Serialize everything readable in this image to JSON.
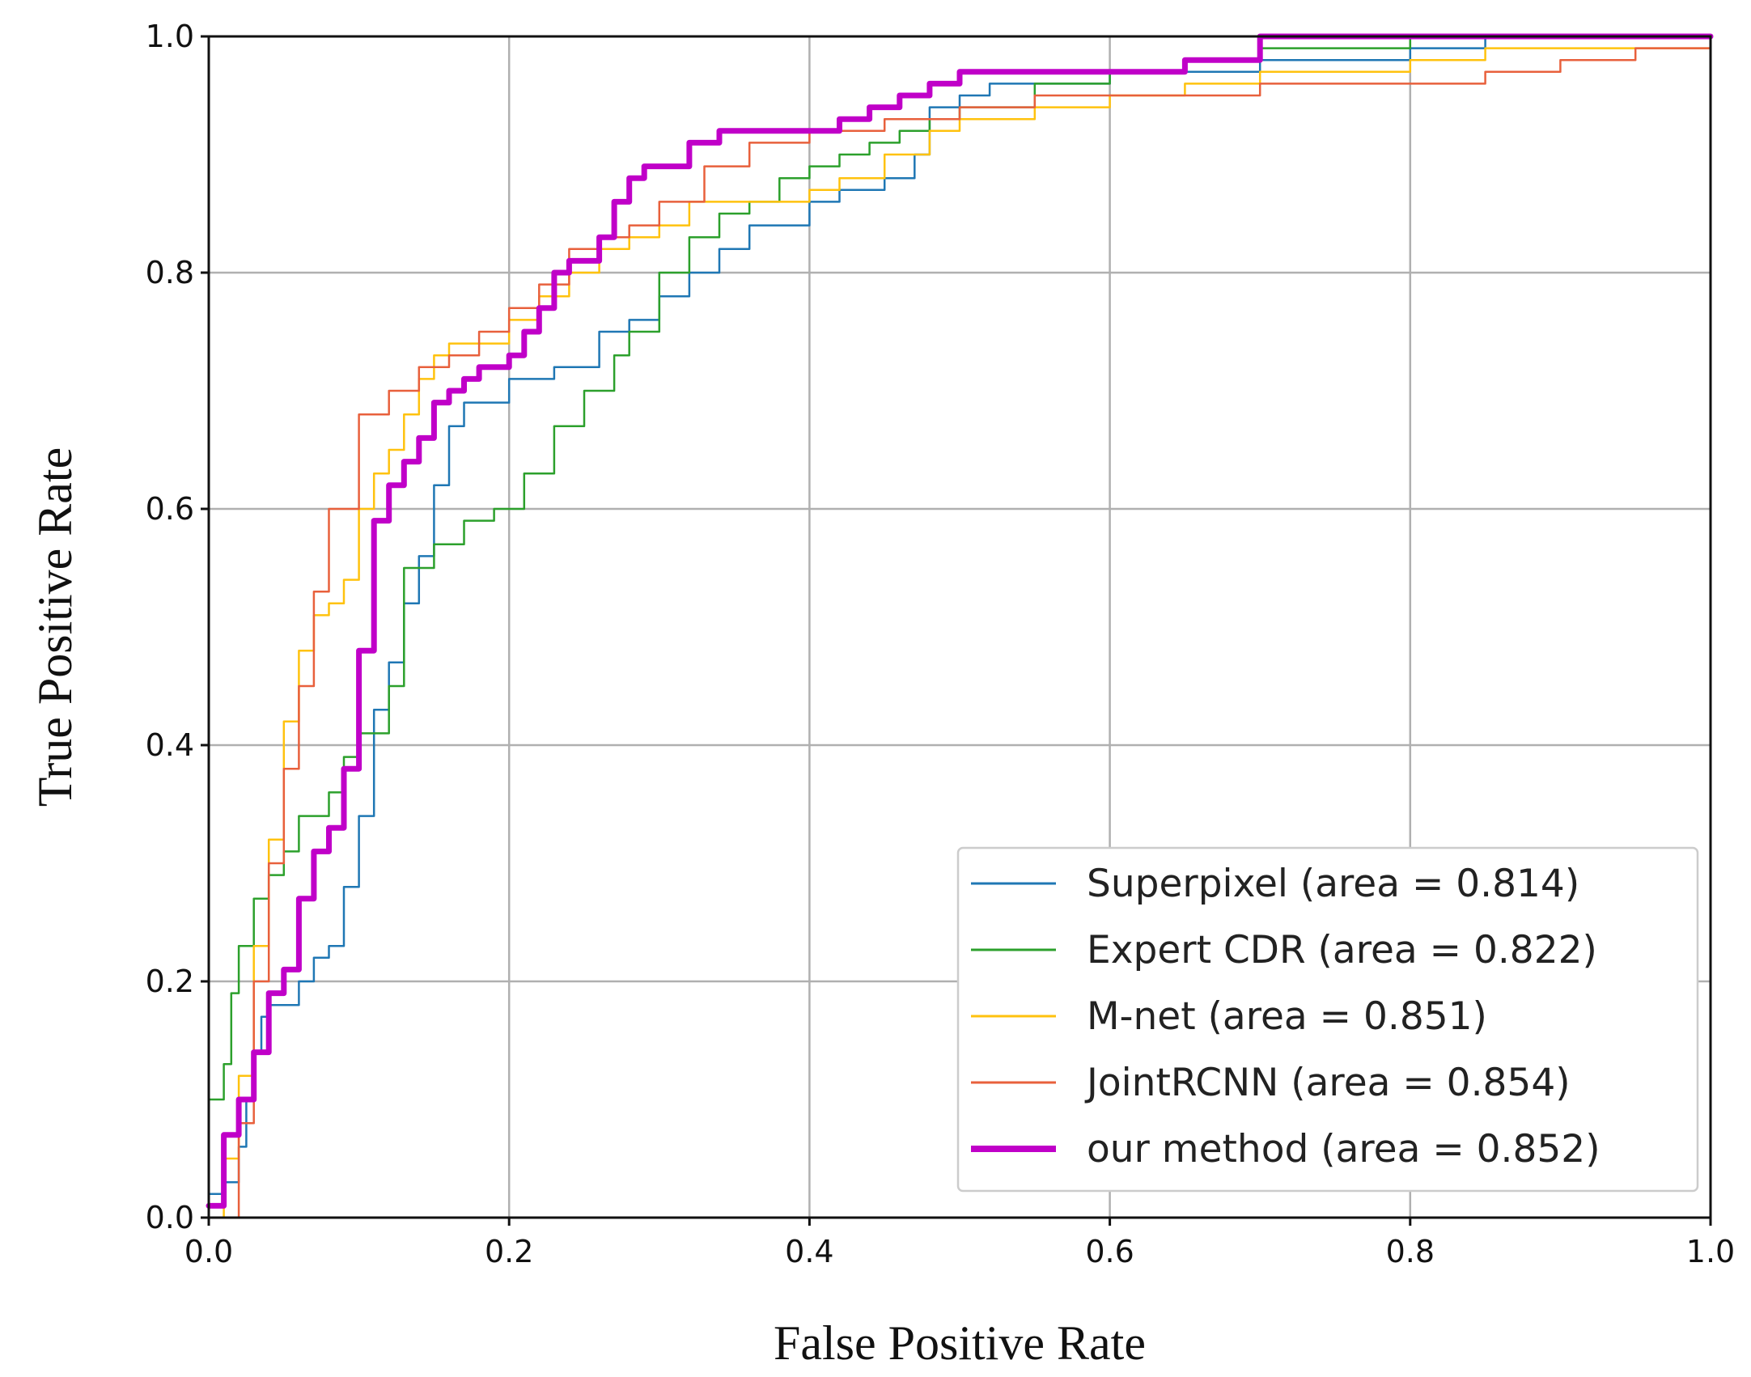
{
  "chart_data": {
    "type": "line",
    "title": "",
    "xlabel": "False Positive Rate",
    "ylabel": "True Positive Rate",
    "xlim": [
      0.0,
      1.0
    ],
    "ylim": [
      0.0,
      1.0
    ],
    "xticks": [
      "0.0",
      "0.2",
      "0.4",
      "0.6",
      "0.8",
      "1.0"
    ],
    "yticks": [
      "0.0",
      "0.2",
      "0.4",
      "0.6",
      "0.8",
      "1.0"
    ],
    "grid": true,
    "legend_position": "lower-right",
    "series": [
      {
        "name": "Superpixel",
        "legend_label": "Superpixel  (area = 0.814)",
        "color": "#1f77b4",
        "width": "thin",
        "x": [
          0.0,
          0.01,
          0.02,
          0.025,
          0.03,
          0.035,
          0.04,
          0.06,
          0.07,
          0.08,
          0.09,
          0.1,
          0.11,
          0.12,
          0.13,
          0.14,
          0.15,
          0.16,
          0.17,
          0.2,
          0.23,
          0.26,
          0.28,
          0.3,
          0.32,
          0.34,
          0.36,
          0.38,
          0.4,
          0.42,
          0.45,
          0.47,
          0.48,
          0.5,
          0.52,
          0.56,
          0.6,
          0.65,
          0.69,
          0.7,
          0.75,
          0.8,
          0.85,
          1.0
        ],
        "y": [
          0.02,
          0.03,
          0.06,
          0.1,
          0.14,
          0.17,
          0.18,
          0.2,
          0.22,
          0.23,
          0.28,
          0.34,
          0.43,
          0.47,
          0.52,
          0.56,
          0.62,
          0.67,
          0.69,
          0.71,
          0.72,
          0.75,
          0.76,
          0.78,
          0.8,
          0.82,
          0.84,
          0.84,
          0.86,
          0.87,
          0.88,
          0.9,
          0.94,
          0.95,
          0.96,
          0.96,
          0.97,
          0.97,
          0.97,
          0.98,
          0.98,
          0.99,
          1.0,
          1.0
        ]
      },
      {
        "name": "Expert CDR",
        "legend_label": "Expert CDR (area = 0.822)",
        "color": "#2ca02c",
        "width": "thin",
        "x": [
          0.0,
          0.0,
          0.01,
          0.015,
          0.02,
          0.03,
          0.04,
          0.05,
          0.06,
          0.08,
          0.09,
          0.1,
          0.11,
          0.12,
          0.13,
          0.15,
          0.17,
          0.19,
          0.21,
          0.23,
          0.25,
          0.27,
          0.28,
          0.3,
          0.32,
          0.34,
          0.36,
          0.38,
          0.4,
          0.42,
          0.44,
          0.46,
          0.48,
          0.5,
          0.55,
          0.6,
          0.65,
          0.7,
          0.75,
          0.8,
          0.87,
          1.0
        ],
        "y": [
          0.0,
          0.1,
          0.13,
          0.19,
          0.23,
          0.27,
          0.29,
          0.31,
          0.34,
          0.36,
          0.39,
          0.41,
          0.41,
          0.45,
          0.55,
          0.57,
          0.59,
          0.6,
          0.63,
          0.67,
          0.7,
          0.73,
          0.75,
          0.8,
          0.83,
          0.85,
          0.86,
          0.88,
          0.89,
          0.9,
          0.91,
          0.92,
          0.93,
          0.94,
          0.96,
          0.97,
          0.98,
          0.99,
          0.99,
          1.0,
          1.0,
          1.0
        ]
      },
      {
        "name": "M-net",
        "legend_label": "M-net  (area = 0.851)",
        "color": "#ffc20e",
        "width": "thin",
        "x": [
          0.0,
          0.01,
          0.02,
          0.03,
          0.04,
          0.05,
          0.06,
          0.07,
          0.08,
          0.09,
          0.1,
          0.11,
          0.12,
          0.13,
          0.14,
          0.15,
          0.16,
          0.17,
          0.2,
          0.22,
          0.24,
          0.26,
          0.28,
          0.3,
          0.32,
          0.34,
          0.36,
          0.38,
          0.4,
          0.42,
          0.45,
          0.48,
          0.5,
          0.55,
          0.6,
          0.65,
          0.7,
          0.75,
          0.8,
          0.85,
          1.0
        ],
        "y": [
          0.0,
          0.05,
          0.12,
          0.23,
          0.32,
          0.42,
          0.48,
          0.51,
          0.52,
          0.54,
          0.6,
          0.63,
          0.65,
          0.68,
          0.71,
          0.73,
          0.74,
          0.74,
          0.76,
          0.78,
          0.8,
          0.82,
          0.83,
          0.84,
          0.86,
          0.86,
          0.86,
          0.86,
          0.87,
          0.88,
          0.9,
          0.92,
          0.93,
          0.94,
          0.95,
          0.96,
          0.97,
          0.97,
          0.98,
          0.99,
          1.0
        ]
      },
      {
        "name": "JointRCNN",
        "legend_label": "JointRCNN  (area = 0.854)",
        "color": "#e8603c",
        "width": "thin",
        "x": [
          0.0,
          0.015,
          0.02,
          0.03,
          0.04,
          0.05,
          0.06,
          0.07,
          0.08,
          0.1,
          0.12,
          0.14,
          0.16,
          0.18,
          0.2,
          0.22,
          0.24,
          0.26,
          0.28,
          0.3,
          0.33,
          0.36,
          0.4,
          0.45,
          0.5,
          0.55,
          0.6,
          0.65,
          0.7,
          0.75,
          0.8,
          0.85,
          0.9,
          0.95,
          1.0
        ],
        "y": [
          0.0,
          0.0,
          0.08,
          0.2,
          0.3,
          0.38,
          0.45,
          0.53,
          0.6,
          0.68,
          0.7,
          0.72,
          0.73,
          0.75,
          0.77,
          0.79,
          0.82,
          0.83,
          0.84,
          0.86,
          0.89,
          0.91,
          0.92,
          0.93,
          0.94,
          0.95,
          0.95,
          0.95,
          0.96,
          0.96,
          0.96,
          0.97,
          0.98,
          0.99,
          1.0
        ]
      },
      {
        "name": "our method",
        "legend_label": "our method (area = 0.852)",
        "color": "#c000c8",
        "width": "thick",
        "x": [
          0.0,
          0.01,
          0.02,
          0.03,
          0.04,
          0.05,
          0.06,
          0.07,
          0.08,
          0.09,
          0.1,
          0.11,
          0.12,
          0.13,
          0.14,
          0.15,
          0.16,
          0.17,
          0.18,
          0.2,
          0.21,
          0.22,
          0.23,
          0.24,
          0.25,
          0.26,
          0.27,
          0.28,
          0.29,
          0.3,
          0.32,
          0.34,
          0.36,
          0.38,
          0.4,
          0.42,
          0.44,
          0.46,
          0.48,
          0.5,
          0.55,
          0.6,
          0.65,
          0.7,
          1.0
        ],
        "y": [
          0.01,
          0.07,
          0.1,
          0.14,
          0.19,
          0.21,
          0.27,
          0.31,
          0.33,
          0.38,
          0.48,
          0.59,
          0.62,
          0.64,
          0.66,
          0.69,
          0.7,
          0.71,
          0.72,
          0.73,
          0.75,
          0.77,
          0.8,
          0.81,
          0.81,
          0.83,
          0.86,
          0.88,
          0.89,
          0.89,
          0.91,
          0.92,
          0.92,
          0.92,
          0.92,
          0.93,
          0.94,
          0.95,
          0.96,
          0.97,
          0.97,
          0.97,
          0.98,
          1.0,
          1.0
        ]
      }
    ]
  }
}
